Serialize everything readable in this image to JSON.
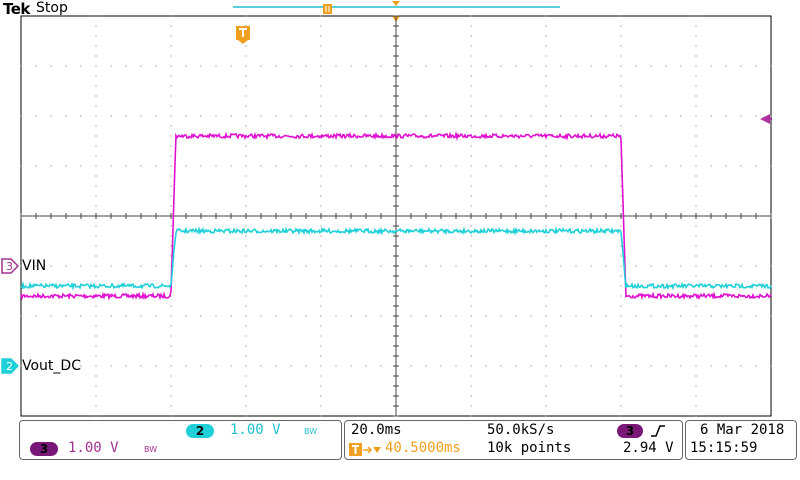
{
  "header": {
    "brand": "Tek",
    "status": "Stop"
  },
  "colors": {
    "ch3": "#e010d0",
    "ch3_label": "#a03090",
    "ch3_pill": "#7a1878",
    "ch2": "#20d0d8",
    "grid": "#6a6a6a",
    "trigger": "#f0a020"
  },
  "channels": [
    {
      "number": "3",
      "name": "VIN",
      "scale": "1.00 V",
      "bw": "BW"
    },
    {
      "number": "2",
      "name": "Vout_DC",
      "scale": "1.00 V",
      "bw": "BW"
    }
  ],
  "timebase": {
    "scale": "20.0ms",
    "sample_rate": "50.0kS/s",
    "trigger_delay": "40.5000ms",
    "record_length": "10k points"
  },
  "trigger": {
    "source": "3",
    "slope": "rising-edge-icon",
    "level": "2.94 V"
  },
  "timestamp": {
    "date": "6 Mar 2018",
    "time": "15:15:59"
  },
  "waveforms": [
    {
      "channel": "3",
      "low_level_div": -1.6,
      "high_level_div": 1.6,
      "rise_time_ms": 40.5,
      "fall_time_ms": 160.5
    },
    {
      "channel": "2",
      "low_level_div": -1.4,
      "high_level_div": -0.3,
      "rise_time_ms": 40.5,
      "fall_time_ms": 160.5
    }
  ]
}
